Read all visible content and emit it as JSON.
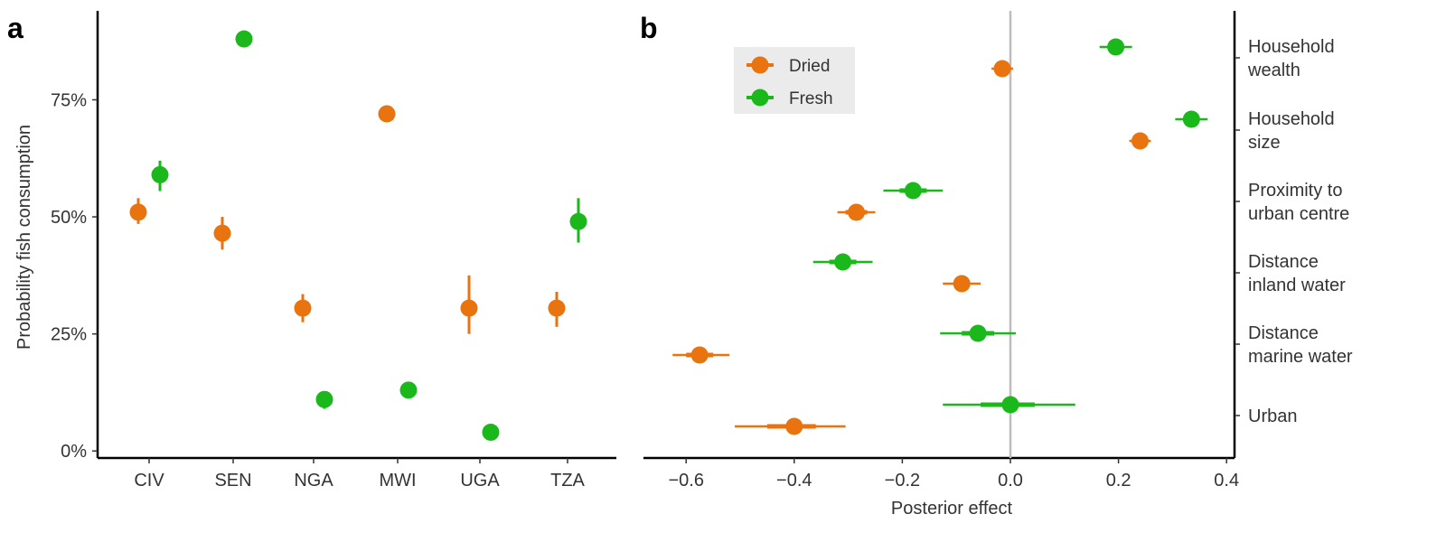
{
  "chart_data": [
    {
      "panel_label": "a",
      "type": "scatter",
      "ylabel": "Probability fish consumption",
      "xlabel": "",
      "categories": [
        "CIV",
        "SEN",
        "NGA",
        "MWI",
        "UGA",
        "TZA"
      ],
      "yticks": [
        {
          "value": 0,
          "label": "0%"
        },
        {
          "value": 25,
          "label": "25%"
        },
        {
          "value": 50,
          "label": "50%"
        },
        {
          "value": 75,
          "label": "75%"
        }
      ],
      "ylim": [
        -1.5,
        94
      ],
      "series": [
        {
          "name": "Dried",
          "color": "#E8730F",
          "points": [
            {
              "category": "CIV",
              "value": 51,
              "low": 48.5,
              "high": 54
            },
            {
              "category": "SEN",
              "value": 46.5,
              "low": 43,
              "high": 50
            },
            {
              "category": "NGA",
              "value": 30.5,
              "low": 27.5,
              "high": 33.5
            },
            {
              "category": "MWI",
              "value": 72,
              "low": 71,
              "high": 73
            },
            {
              "category": "UGA",
              "value": 30.5,
              "low": 25,
              "high": 37.5
            },
            {
              "category": "TZA",
              "value": 30.5,
              "low": 26.5,
              "high": 34
            }
          ]
        },
        {
          "name": "Fresh",
          "color": "#1BB81B",
          "points": [
            {
              "category": "CIV",
              "value": 59,
              "low": 55.5,
              "high": 62
            },
            {
              "category": "SEN",
              "value": 88,
              "low": 86.5,
              "high": 89
            },
            {
              "category": "NGA",
              "value": 11,
              "low": 9,
              "high": 12.5
            },
            {
              "category": "MWI",
              "value": 13,
              "low": 12.5,
              "high": 13.5
            },
            {
              "category": "UGA",
              "value": 4,
              "low": 3.5,
              "high": 4.5
            },
            {
              "category": "TZA",
              "value": 49,
              "low": 44.5,
              "high": 54
            }
          ]
        }
      ]
    },
    {
      "panel_label": "b",
      "type": "scatter",
      "xlabel": "Posterior effect",
      "ylabel": "",
      "xlim": [
        -0.69,
        0.42
      ],
      "xticks": [
        {
          "value": -0.6,
          "label": "−0.6"
        },
        {
          "value": -0.4,
          "label": "−0.4"
        },
        {
          "value": -0.2,
          "label": "−0.2"
        },
        {
          "value": 0.0,
          "label": "0.0"
        },
        {
          "value": 0.2,
          "label": "0.2"
        },
        {
          "value": 0.4,
          "label": "0.4"
        }
      ],
      "reference_line": 0,
      "categories": [
        {
          "key": "household_wealth",
          "lines": [
            "Household",
            "wealth"
          ]
        },
        {
          "key": "household_size",
          "lines": [
            "Household",
            "size"
          ]
        },
        {
          "key": "proximity_urban",
          "lines": [
            "Proximity to",
            "urban centre"
          ]
        },
        {
          "key": "distance_inland",
          "lines": [
            "Distance",
            "inland water"
          ]
        },
        {
          "key": "distance_marine",
          "lines": [
            "Distance",
            "marine water"
          ]
        },
        {
          "key": "urban",
          "lines": [
            "Urban"
          ]
        }
      ],
      "legend": {
        "position": "top-left",
        "entries": [
          "Dried",
          "Fresh"
        ]
      },
      "series": [
        {
          "name": "Fresh",
          "color": "#1BB81B",
          "points": [
            {
              "category": "household_wealth",
              "value": 0.195,
              "low95": 0.165,
              "high95": 0.225,
              "low80": 0.18,
              "high80": 0.21
            },
            {
              "category": "household_size",
              "value": 0.335,
              "low95": 0.305,
              "high95": 0.365,
              "low80": 0.32,
              "high80": 0.35
            },
            {
              "category": "proximity_urban",
              "value": -0.18,
              "low95": -0.235,
              "high95": -0.125,
              "low80": -0.205,
              "high80": -0.155
            },
            {
              "category": "distance_inland",
              "value": -0.31,
              "low95": -0.365,
              "high95": -0.255,
              "low80": -0.335,
              "high80": -0.285
            },
            {
              "category": "distance_marine",
              "value": -0.06,
              "low95": -0.13,
              "high95": 0.01,
              "low80": -0.09,
              "high80": -0.03
            },
            {
              "category": "urban",
              "value": 0.0,
              "low95": -0.125,
              "high95": 0.12,
              "low80": -0.055,
              "high80": 0.045
            }
          ]
        },
        {
          "name": "Dried",
          "color": "#E8730F",
          "points": [
            {
              "category": "household_wealth",
              "value": -0.015,
              "low95": -0.035,
              "high95": 0.005,
              "low80": -0.025,
              "high80": -0.005
            },
            {
              "category": "household_size",
              "value": 0.24,
              "low95": 0.22,
              "high95": 0.26,
              "low80": 0.23,
              "high80": 0.25
            },
            {
              "category": "proximity_urban",
              "value": -0.285,
              "low95": -0.32,
              "high95": -0.25,
              "low80": -0.305,
              "high80": -0.265
            },
            {
              "category": "distance_inland",
              "value": -0.09,
              "low95": -0.125,
              "high95": -0.055,
              "low80": -0.105,
              "high80": -0.075
            },
            {
              "category": "distance_marine",
              "value": -0.575,
              "low95": -0.625,
              "high95": -0.52,
              "low80": -0.6,
              "high80": -0.55
            },
            {
              "category": "urban",
              "value": -0.4,
              "low95": -0.51,
              "high95": -0.305,
              "low80": -0.45,
              "high80": -0.36
            }
          ]
        }
      ]
    }
  ]
}
